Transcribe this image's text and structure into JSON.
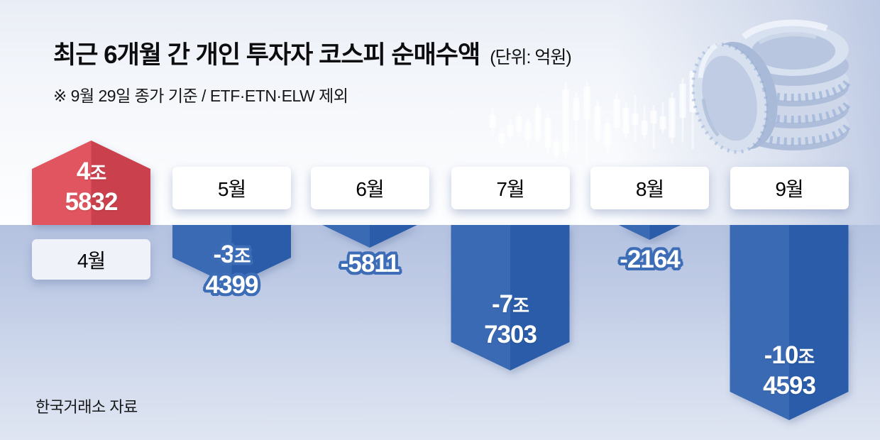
{
  "header": {
    "title": "최근 6개월 간 개인 투자자 코스피 순매수액",
    "unit_note": "(단위: 억원)",
    "subtitle": "※ 9월 29일 종가 기준 / ETF·ETN·ELW 제외"
  },
  "source_label": "한국거래소 자료",
  "colors": {
    "positive_arrow_light": "#e05460",
    "positive_arrow_dark": "#ca414d",
    "negative_arrow_light": "#3a6bb4",
    "negative_arrow_dark": "#2a5ca9",
    "value_outline_blue": "#3d6db6",
    "below_baseline_bg": "#b7c4e1",
    "month_box_bg": "#ffffff"
  },
  "chart_data": {
    "type": "bar",
    "title": "최근 6개월 간 개인 투자자 코스피 순매수액",
    "unit": "억원",
    "categories": [
      "4월",
      "5월",
      "6월",
      "7월",
      "8월",
      "9월"
    ],
    "values": [
      45832,
      -34399,
      -5811,
      -77303,
      -2164,
      -104593
    ],
    "value_labels": [
      [
        "4조",
        "5832"
      ],
      [
        "-3조",
        "4399"
      ],
      [
        "-5811"
      ],
      [
        "-7조",
        "7303"
      ],
      [
        "-2164"
      ],
      [
        "-10조",
        "4593"
      ]
    ],
    "label_placement": [
      "inside",
      "outside",
      "outside",
      "inside",
      "outside",
      "inside"
    ],
    "positive_color": "#e05460",
    "negative_color": "#3a6bb4",
    "baseline_value": 0,
    "ylim": [
      -110000,
      50000
    ],
    "gridlines": false,
    "legend": "none",
    "bar_style": "3d-arrow"
  }
}
